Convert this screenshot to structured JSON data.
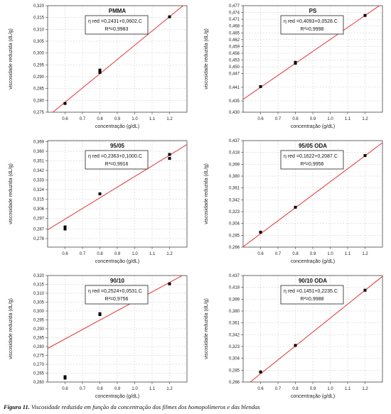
{
  "caption": {
    "label": "Figura 11.",
    "text": "Viscosidade reduzida em função da concentração dos filmes dos homopolímeros e das blendas"
  },
  "colors": {
    "fit_line": "#e53030",
    "points": "#000000",
    "axis": "#444444"
  },
  "chart_data": [
    {
      "type": "scatter",
      "title": "PMMA",
      "xlabel": "concentração (g/dL)",
      "ylabel": "viscosidade reduzida (dL/g)",
      "xlim": [
        0.5,
        1.3
      ],
      "ylim": [
        0.275,
        0.32
      ],
      "xticks": [
        "0.6",
        "0.7",
        "0.8",
        "0.9",
        "1.0",
        "1.1",
        "1.2"
      ],
      "yticks": [
        "0,275",
        "0,280",
        "0,285",
        "0,290",
        "0,295",
        "0,300",
        "0,305",
        "0,310",
        "0,315",
        "0,320"
      ],
      "points": [
        [
          0.6,
          0.2787
        ],
        [
          0.8,
          0.2918
        ],
        [
          0.8,
          0.2928
        ],
        [
          1.2,
          0.3153
        ]
      ],
      "fit": {
        "intercept": 0.2431,
        "slope": 0.0602
      },
      "equation": "η red =0,2431+0,0602.C",
      "r2": "R²=0,9983"
    },
    {
      "type": "scatter",
      "title": "PS",
      "xlabel": "concentração (g/dL)",
      "ylabel": "viscosidade reduzida (dL/g)",
      "xlim": [
        0.5,
        1.3
      ],
      "ylim": [
        0.43,
        0.477
      ],
      "xticks": [
        "0.6",
        "0.7",
        "0.8",
        "0.9",
        "1.0",
        "1.1",
        "1.2"
      ],
      "yticks": [
        "0,430",
        "0,435",
        "0,441",
        "0,447",
        "0,450",
        "0,453",
        "0,456",
        "0,459",
        "0,462",
        "0,465",
        "0,468",
        "0,471",
        "0,474",
        "0,477"
      ],
      "points": [
        [
          0.6,
          0.4413
        ],
        [
          0.8,
          0.4516
        ],
        [
          0.8,
          0.452
        ],
        [
          1.2,
          0.4727
        ]
      ],
      "fit": {
        "intercept": 0.4093,
        "slope": 0.0528
      },
      "equation": "η red =0,4093+0,0528.C",
      "r2": "R²=0,9998"
    },
    {
      "type": "scatter",
      "title": "95/05",
      "xlabel": "concentração (g/dL)",
      "ylabel": "viscosidade reduzida (dL/g)",
      "xlim": [
        0.5,
        1.3
      ],
      "ylim": [
        0.27,
        0.37
      ],
      "xticks": [
        "0.6",
        "0.7",
        "0.8",
        "0.9",
        "1.0",
        "1.1",
        "1.2"
      ],
      "yticks": [
        "0,278",
        "0,287",
        "0,297",
        "0,306",
        "0,315",
        "0,324",
        "0,333",
        "0,342",
        "0,351",
        "0,360",
        "0,369"
      ],
      "points": [
        [
          0.6,
          0.287
        ],
        [
          0.6,
          0.289
        ],
        [
          0.8,
          0.32
        ],
        [
          1.2,
          0.3533
        ],
        [
          1.2,
          0.357
        ]
      ],
      "fit": {
        "intercept": 0.2363,
        "slope": 0.1
      },
      "equation": "η red =0,2363+0,1000.C",
      "r2": "R²=0,9916"
    },
    {
      "type": "scatter",
      "title": "95/05 ODA",
      "xlabel": "concentração (g/dL)",
      "ylabel": "viscosidade reduzida (dL/g)",
      "xlim": [
        0.5,
        1.3
      ],
      "ylim": [
        0.266,
        0.437
      ],
      "xticks": [
        "0.6",
        "0.7",
        "0.8",
        "0.9",
        "1.0",
        "1.1",
        "1.2"
      ],
      "yticks": [
        "0,266",
        "0,285",
        "0,304",
        "0,323",
        "0,342",
        "0,361",
        "0,380",
        "0,399",
        "0,418",
        "0,437"
      ],
      "points": [
        [
          0.6,
          0.29
        ],
        [
          0.8,
          0.33
        ],
        [
          1.2,
          0.413
        ]
      ],
      "fit": {
        "intercept": 0.1622,
        "slope": 0.2087
      },
      "equation": "η red =0,1622+0,2087.C",
      "r2": "R²=0,9956"
    },
    {
      "type": "scatter",
      "title": "90/10",
      "xlabel": "concentração (g/dL)",
      "ylabel": "viscosidade reduzida (dL/g)",
      "xlim": [
        0.5,
        1.3
      ],
      "ylim": [
        0.26,
        0.32
      ],
      "xticks": [
        "0.6",
        "0.7",
        "0.8",
        "0.9",
        "1.0",
        "1.1",
        "1.2"
      ],
      "yticks": [
        "0,260",
        "0,265",
        "0,270",
        "0,275",
        "0,280",
        "0,285",
        "0,290",
        "0,295",
        "0,300",
        "0,305",
        "0,310",
        "0,315",
        "0,320"
      ],
      "points": [
        [
          0.6,
          0.2622
        ],
        [
          0.6,
          0.263
        ],
        [
          0.8,
          0.298
        ],
        [
          0.8,
          0.2985
        ],
        [
          1.2,
          0.3153
        ]
      ],
      "fit": {
        "intercept": 0.2524,
        "slope": 0.0531
      },
      "equation": "η red =0,2524+0,0531.C",
      "r2": "R²=0,9756"
    },
    {
      "type": "scatter",
      "title": "90/10 ODA",
      "xlabel": "concentração (g/dL)",
      "ylabel": "viscosidade reduzida (dL/g)",
      "xlim": [
        0.5,
        1.3
      ],
      "ylim": [
        0.266,
        0.437
      ],
      "xticks": [
        "0.6",
        "0.7",
        "0.8",
        "0.9",
        "1.0",
        "1.1",
        "1.2"
      ],
      "yticks": [
        "0,266",
        "0,285",
        "0,304",
        "0,323",
        "0,342",
        "0,361",
        "0,380",
        "0,399",
        "0,418",
        "0,437"
      ],
      "points": [
        [
          0.6,
          0.2822
        ],
        [
          0.8,
          0.3248
        ],
        [
          1.2,
          0.4134
        ]
      ],
      "fit": {
        "intercept": 0.1451,
        "slope": 0.2235
      },
      "equation": "η red =0,1451+0,2235.C",
      "r2": "R²=0,9988"
    }
  ]
}
